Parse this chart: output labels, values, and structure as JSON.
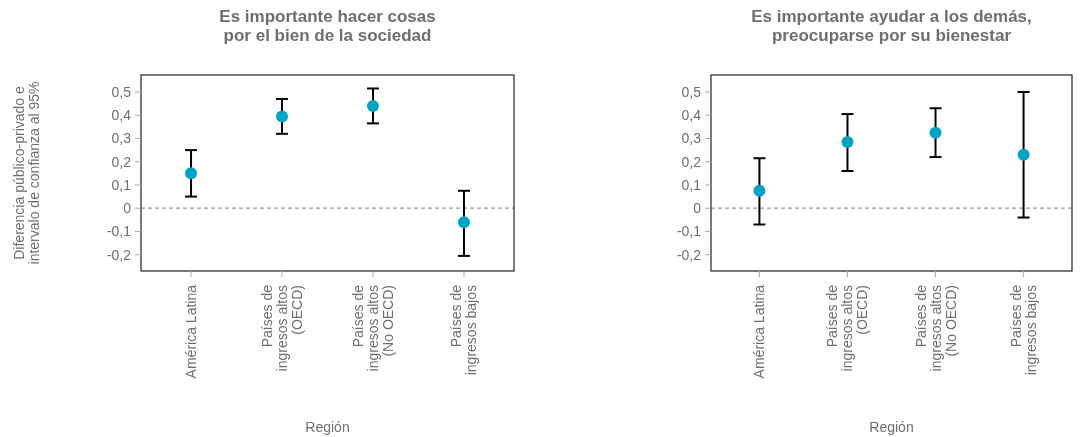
{
  "chart_data": [
    {
      "type": "scatter",
      "title": "Es importante hacer cosas\npor el bien de la sociedad",
      "xlabel": "Región",
      "ylabel": "Diferencia público-privado e\nintervalo de confianza al 95%",
      "categories": [
        "América Latina",
        "Países de\ningresos altos\n(OECD)",
        "Países de\ningresos altos\n(No OECD)",
        "Países de\ningresos bajos"
      ],
      "ylim": [
        -0.27,
        0.573
      ],
      "yticks": [
        {
          "value": -0.2,
          "label": "-0,2"
        },
        {
          "value": -0.1,
          "label": "-0,1"
        },
        0,
        {
          "value": 0.1,
          "label": "0,1"
        },
        {
          "value": 0.2,
          "label": "0,2"
        },
        {
          "value": 0.3,
          "label": "0,3"
        },
        {
          "value": 0.4,
          "label": "0,4"
        },
        {
          "value": 0.5,
          "label": "0,5"
        }
      ],
      "grid": false,
      "marker": "circle",
      "series": [
        {
          "color": "#00a3c4",
          "values": [
            0.15,
            0.395,
            0.44,
            -0.06
          ],
          "errors": [
            [
              0.05,
              0.25
            ],
            [
              0.32,
              0.47
            ],
            [
              0.365,
              0.515
            ],
            [
              -0.205,
              0.075
            ]
          ]
        }
      ],
      "ref_lines": [
        {
          "axis": "y",
          "value": 0,
          "color": "#999999",
          "line_style": "dashed"
        }
      ]
    },
    {
      "type": "scatter",
      "title": "Es importante ayudar a los demás,\npreocuparse por su bienestar",
      "xlabel": "Región",
      "categories": [
        "América Latina",
        "Países de\ningresos altos\n(OECD)",
        "Países de\ningresos altos\n(No OECD)",
        "Países de\ningresos bajos"
      ],
      "ylim": [
        -0.27,
        0.573
      ],
      "yticks": [
        {
          "value": -0.2,
          "label": "-0,2"
        },
        {
          "value": -0.1,
          "label": "-0,1"
        },
        0,
        {
          "value": 0.1,
          "label": "0,1"
        },
        {
          "value": 0.2,
          "label": "0,2"
        },
        {
          "value": 0.3,
          "label": "0,3"
        },
        {
          "value": 0.4,
          "label": "0,4"
        },
        {
          "value": 0.5,
          "label": "0,5"
        }
      ],
      "grid": false,
      "marker": "circle",
      "series": [
        {
          "color": "#00a3c4",
          "values": [
            0.075,
            0.285,
            0.325,
            0.23
          ],
          "errors": [
            [
              -0.07,
              0.215
            ],
            [
              0.16,
              0.405
            ],
            [
              0.22,
              0.43
            ],
            [
              -0.04,
              0.5
            ]
          ]
        }
      ],
      "ref_lines": [
        {
          "axis": "y",
          "value": 0,
          "color": "#999999",
          "line_style": "dashed"
        }
      ]
    }
  ]
}
